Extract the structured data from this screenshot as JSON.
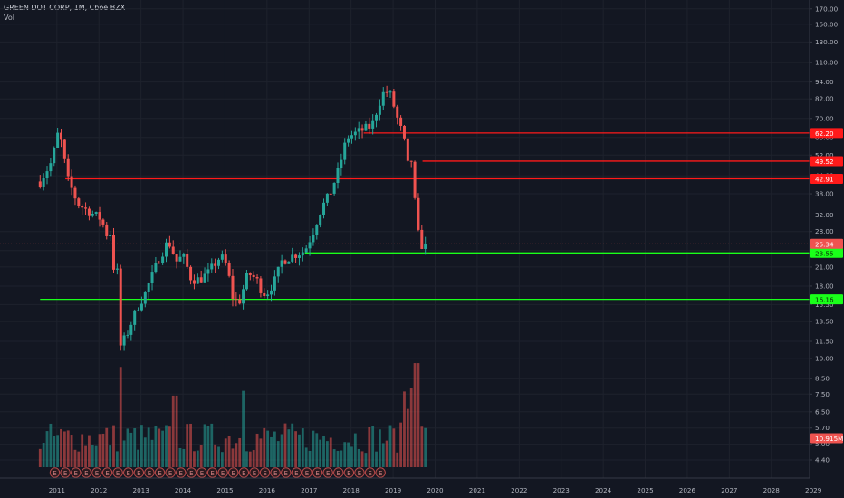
{
  "header": {
    "title": "GREEN DOT CORP, 1M, Cboe BZX",
    "indicator": "Vol"
  },
  "colors": {
    "background": "#131722",
    "grid": "#1e222d",
    "up": "#26a69a",
    "down": "#ef5350",
    "resistance": "#ff1a1a",
    "support": "#1aff1a",
    "text": "#b2b5be",
    "axis_border": "#363a45",
    "earnings_badge": "#b84a4a"
  },
  "chart_data": {
    "type": "candlestick",
    "symbol": "GREEN DOT CORP",
    "interval": "1M",
    "exchange": "Cboe BZX",
    "price_scale": "log",
    "ylim": [
      3.8,
      180
    ],
    "xlim": [
      2010.4,
      2029.6
    ],
    "y_ticks": [
      "4.40",
      "5.00",
      "5.70",
      "6.50",
      "7.50",
      "8.50",
      "10.00",
      "11.50",
      "13.50",
      "15.50",
      "18.00",
      "21.00",
      "24.00",
      "28.00",
      "32.00",
      "38.00",
      "44.00",
      "52.00",
      "60.00",
      "70.00",
      "82.00",
      "94.00",
      "110.00",
      "130.00",
      "150.00",
      "170.00"
    ],
    "x_ticks": [
      "2011",
      "2012",
      "2013",
      "2014",
      "2015",
      "2016",
      "2017",
      "2018",
      "2019",
      "2020",
      "2021",
      "2022",
      "2023",
      "2024",
      "2025",
      "2026",
      "2027",
      "2028",
      "2029"
    ],
    "horizontal_lines": [
      {
        "label": "62.20",
        "value": 62.2,
        "kind": "resistance",
        "start_year": 2018.3
      },
      {
        "label": "49.52",
        "value": 49.52,
        "kind": "resistance",
        "start_year": 2019.7
      },
      {
        "label": "42.91",
        "value": 42.91,
        "kind": "resistance",
        "start_year": 2011.2
      },
      {
        "label": "23.55",
        "value": 23.55,
        "kind": "support",
        "start_year": 2016.9
      },
      {
        "label": "16.16",
        "value": 16.16,
        "kind": "support",
        "start_year": 2010.6
      }
    ],
    "last_price": {
      "label": "25.34",
      "value": 25.34
    },
    "volume_label": "10.915M",
    "earnings_marker": "E",
    "earnings_count": 32,
    "earnings_start_year": 2010.95,
    "candle_anchors": [
      [
        2010.6,
        42
      ],
      [
        2010.9,
        50
      ],
      [
        2011.0,
        62
      ],
      [
        2011.1,
        58
      ],
      [
        2011.25,
        43
      ],
      [
        2011.5,
        35
      ],
      [
        2011.75,
        33
      ],
      [
        2011.9,
        32
      ],
      [
        2012.05,
        31
      ],
      [
        2012.2,
        27
      ],
      [
        2012.3,
        28
      ],
      [
        2012.35,
        21
      ],
      [
        2012.45,
        20
      ],
      [
        2012.5,
        11
      ],
      [
        2012.65,
        12
      ],
      [
        2012.9,
        15
      ],
      [
        2013.1,
        17
      ],
      [
        2013.4,
        22
      ],
      [
        2013.65,
        26
      ],
      [
        2013.85,
        22
      ],
      [
        2014.0,
        23
      ],
      [
        2014.2,
        19
      ],
      [
        2014.4,
        19
      ],
      [
        2014.6,
        20
      ],
      [
        2014.9,
        23
      ],
      [
        2015.05,
        21
      ],
      [
        2015.2,
        16
      ],
      [
        2015.35,
        16
      ],
      [
        2015.55,
        20
      ],
      [
        2015.75,
        19
      ],
      [
        2015.9,
        17
      ],
      [
        2016.0,
        17
      ],
      [
        2016.2,
        19
      ],
      [
        2016.35,
        22
      ],
      [
        2016.6,
        23
      ],
      [
        2016.9,
        24
      ],
      [
        2017.1,
        28
      ],
      [
        2017.3,
        34
      ],
      [
        2017.5,
        38
      ],
      [
        2017.7,
        46
      ],
      [
        2017.9,
        60
      ],
      [
        2018.1,
        62
      ],
      [
        2018.3,
        64
      ],
      [
        2018.5,
        66
      ],
      [
        2018.65,
        78
      ],
      [
        2018.8,
        88
      ],
      [
        2018.95,
        84
      ],
      [
        2019.1,
        70
      ],
      [
        2019.25,
        60
      ],
      [
        2019.35,
        48
      ],
      [
        2019.45,
        50
      ],
      [
        2019.55,
        30
      ],
      [
        2019.65,
        25
      ],
      [
        2019.8,
        25.34
      ]
    ],
    "volume_range_millions": [
      0,
      11
    ]
  }
}
